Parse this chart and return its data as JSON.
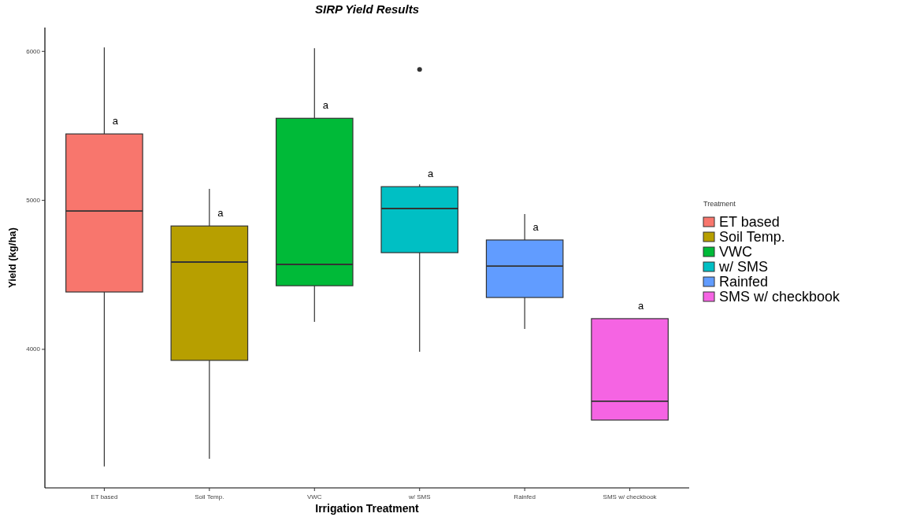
{
  "chart_data": {
    "type": "box",
    "title": "SIRP Yield Results",
    "xlabel": "Irrigation Treatment",
    "ylabel": "Yield (kg/ha)",
    "legend_title": "Treatment",
    "legend": "right",
    "grid": false,
    "categories": [
      "ET based",
      "Soil Temp.",
      "VWC",
      "w/ SMS",
      "Rainfed",
      "SMS w/ checkbook"
    ],
    "series": [
      {
        "name": "ET based",
        "color": "#f8766d",
        "boxes": [
          {
            "low": 3214,
            "q1": 4385,
            "median": 4929,
            "q3": 5446,
            "high": 6026
          },
          null,
          null,
          null,
          null,
          null
        ]
      },
      {
        "name": "Soil Temp.",
        "color": "#b79f00",
        "boxes": [
          null,
          {
            "low": 3266,
            "q1": 3926,
            "median": 4586,
            "q3": 4828,
            "high": 5077
          },
          null,
          null,
          null,
          null
        ]
      },
      {
        "name": "VWC",
        "color": "#00ba38",
        "boxes": [
          null,
          null,
          {
            "low": 4185,
            "q1": 4427,
            "median": 4570,
            "q3": 5551,
            "high": 6021
          },
          null,
          null,
          null
        ]
      },
      {
        "name": "w/ SMS",
        "color": "#00bfc4",
        "boxes": [
          null,
          null,
          null,
          {
            "low": 3984,
            "q1": 4649,
            "median": 4945,
            "q3": 5092,
            "high": 5108,
            "outliers": [
              5879
            ]
          },
          null,
          null
        ]
      },
      {
        "name": "Rainfed",
        "color": "#619cff",
        "boxes": [
          null,
          null,
          null,
          null,
          {
            "low": 4137,
            "q1": 4348,
            "median": 4559,
            "q3": 4734,
            "high": 4908
          },
          null
        ]
      },
      {
        "name": "SMS w/ checkbook",
        "color": "#f564e3",
        "boxes": [
          null,
          null,
          null,
          null,
          null,
          {
            "low": 3525,
            "q1": 3525,
            "median": 3652,
            "q3": 4206,
            "high": 4206
          }
        ]
      }
    ],
    "ylim": [
      3070,
      6160
    ],
    "yticks": [
      4000,
      5000,
      6000
    ],
    "annotations": [
      "a",
      "a",
      "a",
      "a",
      "a",
      "a"
    ]
  }
}
